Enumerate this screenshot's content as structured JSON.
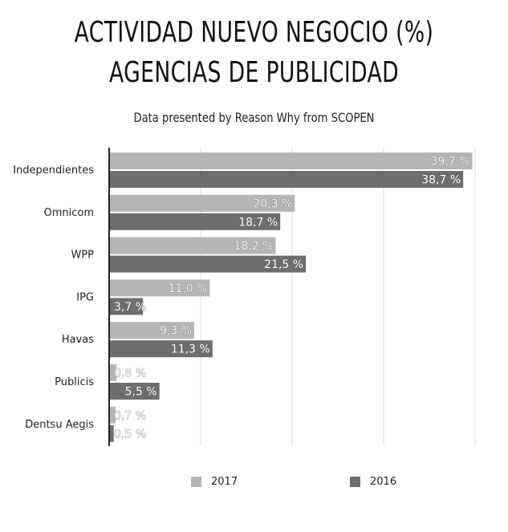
{
  "chart_data": {
    "type": "bar",
    "orientation": "horizontal",
    "title_lines": [
      "ACTIVIDAD NUEVO NEGOCIO (%)",
      "AGENCIAS DE PUBLICIDAD"
    ],
    "subtitle": "Data presented by Reason Why from SCOPEN",
    "categories": [
      "Independientes",
      "Omnicom",
      "WPP",
      "IPG",
      "Havas",
      "Publicis",
      "Dentsu Aegis"
    ],
    "series": [
      {
        "name": "2017",
        "color": "#b5b5b5",
        "values": [
          39.7,
          20.3,
          18.2,
          11.0,
          9.3,
          0.8,
          0.7
        ],
        "labels": [
          "39,7 %",
          "20,3 %",
          "18,2 %",
          "11,0 %",
          "9,3 %",
          "0,8 %",
          "0,7 %"
        ]
      },
      {
        "name": "2016",
        "color": "#6e6e6e",
        "values": [
          38.7,
          18.7,
          21.5,
          3.7,
          11.3,
          5.5,
          0.5
        ],
        "labels": [
          "38,7 %",
          "18,7 %",
          "21,5 %",
          "3,7 %",
          "11,3 %",
          "5,5 %",
          "0,5 %"
        ]
      }
    ],
    "xlim": [
      0,
      40
    ],
    "gridlines": [
      10,
      20,
      30,
      40
    ],
    "grid": true,
    "legend_position": "bottom",
    "xlabel": "",
    "ylabel": ""
  }
}
